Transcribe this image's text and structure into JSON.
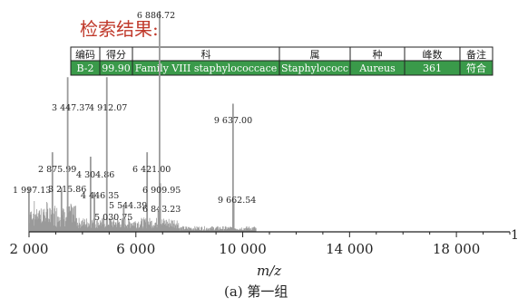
{
  "result_title": "检索结果:",
  "result_table": {
    "headers": [
      "编码",
      "得分",
      "科",
      "属",
      "种",
      "峰数",
      "备注"
    ],
    "row": [
      "B-2",
      "99.90",
      "Family VIII staphylococcace",
      "Staphylococc",
      "Aureus",
      "361",
      "符合"
    ],
    "row_color": "#3a9a4a"
  },
  "caption": "(a) 第一组",
  "chart_data": {
    "type": "line",
    "title": "",
    "xlabel": "m/z",
    "ylabel": "",
    "xlim": [
      2000,
      20000
    ],
    "ylim": [
      0,
      1
    ],
    "y_tick_label": "1",
    "x_ticks": [
      2000,
      6000,
      10000,
      14000,
      18000
    ],
    "x_tick_labels": [
      "2 000",
      "6 000",
      "10 000",
      "14 000",
      "18 000"
    ],
    "line_color": "#9a9a9a",
    "peaks": [
      {
        "x": 1997.13,
        "y": 0.2,
        "label": "1 997.13"
      },
      {
        "x": 2875.99,
        "y": 0.36,
        "label": "2 875.99"
      },
      {
        "x": 3215.86,
        "y": 0.2,
        "label": "3 215.86"
      },
      {
        "x": 3447.37,
        "y": 0.7,
        "label": "3 447.37"
      },
      {
        "x": 4304.86,
        "y": 0.34,
        "label": "4 304.86"
      },
      {
        "x": 4446.35,
        "y": 0.18,
        "label": "4 446.35"
      },
      {
        "x": 4912.07,
        "y": 0.7,
        "label": "4 912.07"
      },
      {
        "x": 5030.75,
        "y": 0.06,
        "label": "5 030.75"
      },
      {
        "x": 5544.39,
        "y": 0.12,
        "label": "5 544.39"
      },
      {
        "x": 6421.0,
        "y": 0.36,
        "label": "6 421.00"
      },
      {
        "x": 6843.23,
        "y": 0.1,
        "label": "6 843.23"
      },
      {
        "x": 6886.72,
        "y": 1.0,
        "label": "6 886.72"
      },
      {
        "x": 6909.95,
        "y": 0.22,
        "label": "6 909.95"
      },
      {
        "x": 9637.0,
        "y": 0.58,
        "label": "9 637.00"
      },
      {
        "x": 9662.54,
        "y": 0.14,
        "label": "9 662.54"
      }
    ]
  }
}
